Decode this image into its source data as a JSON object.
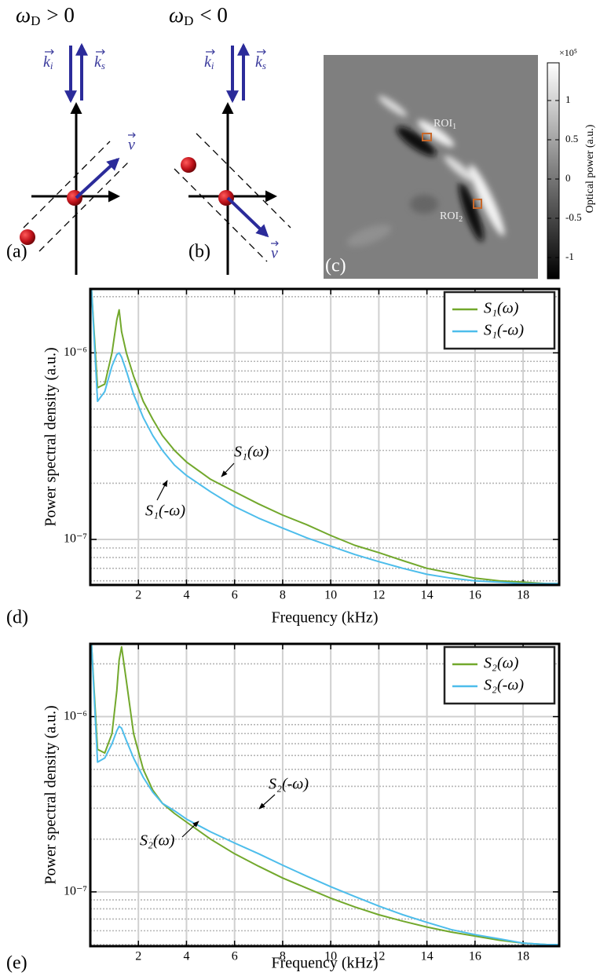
{
  "diagrams": [
    {
      "panel_label": "(a)",
      "title": {
        "symbol": "ω",
        "subscript": "D",
        "relation": "> 0"
      },
      "k_i": {
        "symbol": "k",
        "subscript": "i"
      },
      "k_s": {
        "symbol": "k",
        "subscript": "s"
      },
      "velocity": "v"
    },
    {
      "panel_label": "(b)",
      "title": {
        "symbol": "ω",
        "subscript": "D",
        "relation": "< 0"
      },
      "k_i": {
        "symbol": "k",
        "subscript": "i"
      },
      "k_s": {
        "symbol": "k",
        "subscript": "s"
      },
      "velocity": "v"
    }
  ],
  "image_panel": {
    "panel_label": "(c)",
    "roi_labels": [
      {
        "text": "ROI",
        "subscript": "1"
      },
      {
        "text": "ROI",
        "subscript": "2"
      }
    ],
    "colorbar": {
      "label": "Optical power (a.u.)",
      "exponent_label": "×10⁵",
      "lim": [
        -1.27,
        1.48
      ],
      "ticks": [
        -1,
        -0.5,
        0,
        0.5,
        1
      ]
    }
  },
  "chart_data": [
    {
      "type": "line",
      "panel_label": "(d)",
      "x_label": "Frequency (kHz)",
      "y_label": "Power spectral density (a.u.)",
      "log_y": true,
      "grid": true,
      "legend": "upper right",
      "xlim": [
        0,
        19.5
      ],
      "xticks": [
        2,
        4,
        6,
        8,
        10,
        12,
        14,
        16,
        18
      ],
      "ylim": [
        5.7e-08,
        2.2e-06
      ],
      "yticks": [
        {
          "value": 1e-07,
          "label": "10⁻⁷"
        },
        {
          "value": 1e-06,
          "label": "10⁻⁶"
        }
      ],
      "yminor": [
        6e-08,
        7e-08,
        8e-08,
        9e-08,
        2e-07,
        3e-07,
        4e-07,
        5e-07,
        6e-07,
        7e-07,
        8e-07,
        9e-07,
        2e-06
      ],
      "x": [
        0.05,
        0.3,
        0.6,
        0.9,
        1.1,
        1.2,
        1.3,
        1.5,
        1.8,
        2.2,
        2.6,
        3,
        3.5,
        4,
        5,
        6,
        7,
        8,
        9,
        10,
        11,
        12,
        13,
        14,
        15,
        16,
        17,
        18,
        19,
        19.5
      ],
      "series": [
        {
          "name": "S₁(ω)",
          "color": "#72a82c",
          "values": [
            2.2e-06,
            6.5e-07,
            6.8e-07,
            1e-06,
            1.5e-06,
            1.7e-06,
            1.3e-06,
            1e-06,
            7.5e-07,
            5.5e-07,
            4.4e-07,
            3.6e-07,
            3e-07,
            2.6e-07,
            2.1e-07,
            1.8e-07,
            1.55e-07,
            1.35e-07,
            1.2e-07,
            1.05e-07,
            9.3e-08,
            8.5e-08,
            7.7e-08,
            7e-08,
            6.6e-08,
            6.2e-08,
            6e-08,
            5.9e-08,
            5.8e-08,
            5.8e-08
          ]
        },
        {
          "name": "S₁(-ω)",
          "color": "#4dbdeb",
          "values": [
            2.2e-06,
            5.5e-07,
            6.2e-07,
            8.5e-07,
            9.8e-07,
            1e-06,
            9.5e-07,
            8e-07,
            6e-07,
            4.5e-07,
            3.6e-07,
            3e-07,
            2.5e-07,
            2.2e-07,
            1.8e-07,
            1.5e-07,
            1.3e-07,
            1.15e-07,
            1.02e-07,
            9.2e-08,
            8.3e-08,
            7.6e-08,
            7e-08,
            6.5e-08,
            6.2e-08,
            6e-08,
            5.9e-08,
            5.8e-08,
            5.8e-08,
            5.8e-08
          ]
        }
      ],
      "annotations": [
        "S₁(ω)",
        "S₁(-ω)"
      ]
    },
    {
      "type": "line",
      "panel_label": "(e)",
      "x_label": "Frequency (kHz)",
      "y_label": "Power spectral density (a.u.)",
      "log_y": true,
      "grid": true,
      "legend": "upper right",
      "xlim": [
        0,
        19.5
      ],
      "xticks": [
        2,
        4,
        6,
        8,
        10,
        12,
        14,
        16,
        18
      ],
      "ylim": [
        4.9e-08,
        2.6e-06
      ],
      "yticks": [
        {
          "value": 1e-07,
          "label": "10⁻⁷"
        },
        {
          "value": 1e-06,
          "label": "10⁻⁶"
        }
      ],
      "yminor": [
        5e-08,
        6e-08,
        7e-08,
        8e-08,
        9e-08,
        2e-07,
        3e-07,
        4e-07,
        5e-07,
        6e-07,
        7e-07,
        8e-07,
        9e-07,
        2e-06
      ],
      "x": [
        0.05,
        0.3,
        0.6,
        0.9,
        1.1,
        1.2,
        1.3,
        1.5,
        1.8,
        2.2,
        2.6,
        3,
        3.5,
        4,
        5,
        6,
        7,
        8,
        9,
        10,
        11,
        12,
        13,
        14,
        15,
        16,
        17,
        18,
        19,
        19.5
      ],
      "series": [
        {
          "name": "S₂(ω)",
          "color": "#72a82c",
          "values": [
            2.6e-06,
            6.5e-07,
            6.2e-07,
            8e-07,
            1.4e-06,
            2.1e-06,
            2.5e-06,
            1.6e-06,
            8e-07,
            5e-07,
            3.8e-07,
            3.2e-07,
            2.8e-07,
            2.5e-07,
            2e-07,
            1.65e-07,
            1.4e-07,
            1.2e-07,
            1.05e-07,
            9.2e-08,
            8.2e-08,
            7.4e-08,
            6.8e-08,
            6.3e-08,
            5.9e-08,
            5.6e-08,
            5.3e-08,
            5.1e-08,
            5e-08,
            5e-08
          ]
        },
        {
          "name": "S₂(-ω)",
          "color": "#4dbdeb",
          "values": [
            2.6e-06,
            5.5e-07,
            5.8e-07,
            7e-07,
            8.3e-07,
            8.8e-07,
            8.6e-07,
            7.3e-07,
            5.8e-07,
            4.5e-07,
            3.7e-07,
            3.2e-07,
            2.9e-07,
            2.6e-07,
            2.2e-07,
            1.9e-07,
            1.65e-07,
            1.42e-07,
            1.23e-07,
            1.07e-07,
            9.4e-08,
            8.3e-08,
            7.4e-08,
            6.7e-08,
            6.1e-08,
            5.7e-08,
            5.4e-08,
            5.1e-08,
            5e-08,
            5e-08
          ]
        }
      ],
      "annotations": [
        "S₂(-ω)",
        "S₂(ω)"
      ]
    }
  ]
}
